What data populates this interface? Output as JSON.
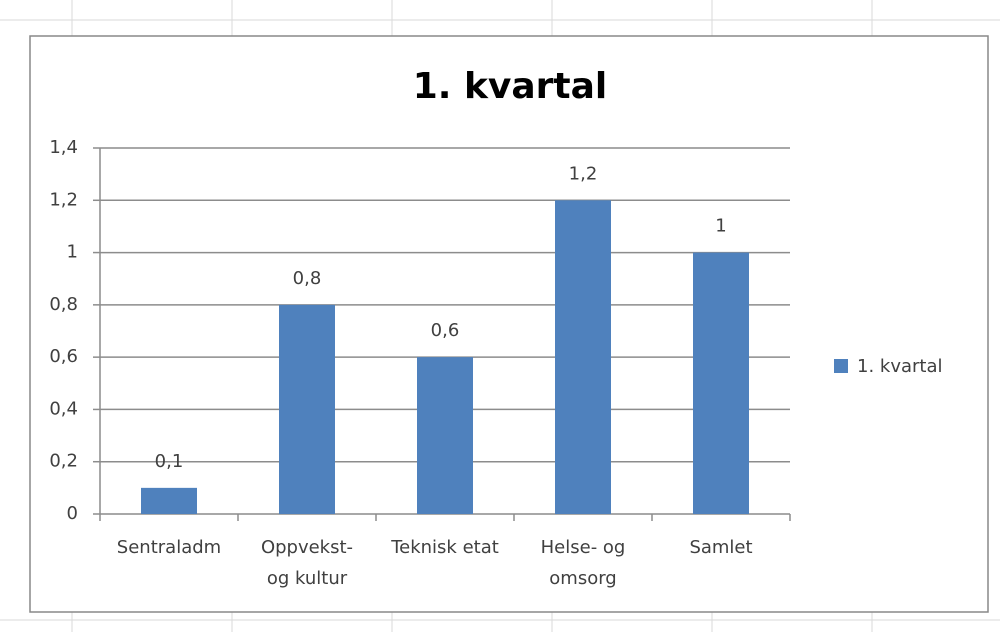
{
  "chart_data": {
    "type": "bar",
    "title": "1. kvartal",
    "categories": [
      "Sentraladm",
      "Oppvekst-\nog kultur",
      "Teknisk etat",
      "Helse- og\nomsorg",
      "Samlet"
    ],
    "series": [
      {
        "name": "1. kvartal",
        "color": "#4f81bd",
        "values": [
          0.1,
          0.8,
          0.6,
          1.2,
          1
        ],
        "value_labels": [
          "0,1",
          "0,8",
          "0,6",
          "1,2",
          "1"
        ]
      }
    ],
    "ylim": [
      0,
      1.4
    ],
    "yticks": [
      0,
      {
        "value": 0.2,
        "label": "0,2"
      },
      {
        "value": 0.4,
        "label": "0,4"
      },
      {
        "value": 0.6,
        "label": "0,6"
      },
      {
        "value": 0.8,
        "label": "0,8"
      },
      1,
      {
        "value": 1.2,
        "label": "1,2"
      },
      {
        "value": 1.4,
        "label": "1,4"
      }
    ],
    "grid": true,
    "legend": "right"
  }
}
